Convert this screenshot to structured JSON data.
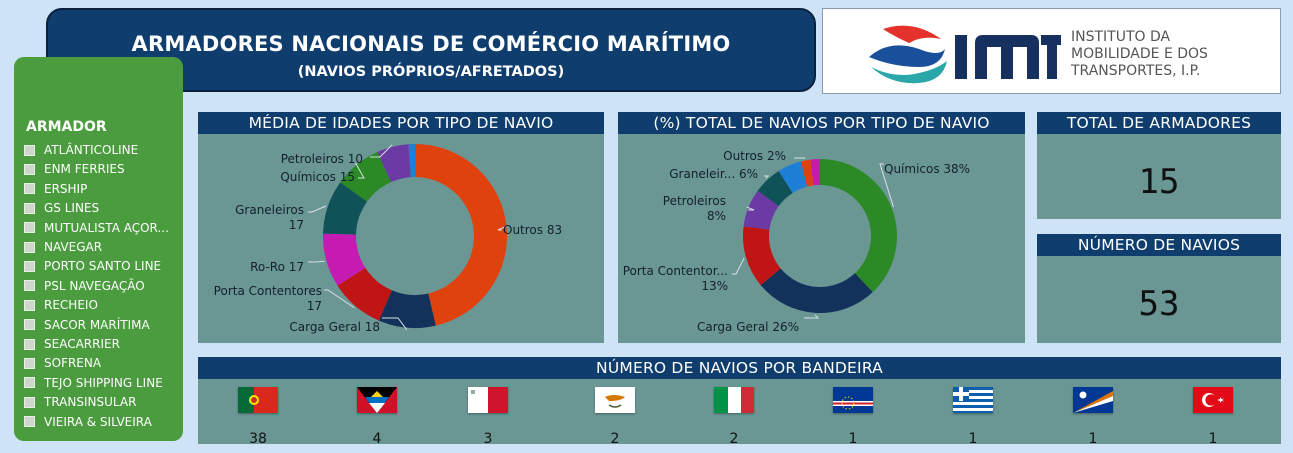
{
  "header": {
    "title": "ARMADORES NACIONAIS DE COMÉRCIO MARÍTIMO",
    "subtitle": "(NAVIOS PRÓPRIOS/AFRETADOS)"
  },
  "logo": {
    "text_lines": [
      "INSTITUTO DA",
      "MOBILIDADE E DOS",
      "TRANSPORTES, I.P."
    ],
    "colors": {
      "wave_blue": "#1a4f9c",
      "wave_red": "#e4312b",
      "wave_teal": "#2aa7a8",
      "mark_navy": "#16315f"
    }
  },
  "sidebar": {
    "title": "ARMADOR",
    "items": [
      {
        "label": "ATLÂNTICOLINE"
      },
      {
        "label": "ENM FERRIES"
      },
      {
        "label": "ERSHIP"
      },
      {
        "label": "GS LINES"
      },
      {
        "label": "MUTUALISTA AÇOR..."
      },
      {
        "label": "NAVEGAR"
      },
      {
        "label": "PORTO SANTO LINE"
      },
      {
        "label": "PSL NAVEGAÇÃO"
      },
      {
        "label": "RECHEIO"
      },
      {
        "label": "SACOR MARÍTIMA"
      },
      {
        "label": "SEACARRIER"
      },
      {
        "label": "SOFRENA"
      },
      {
        "label": "TEJO SHIPPING LINE"
      },
      {
        "label": "TRANSINSULAR"
      },
      {
        "label": "VIEIRA & SILVEIRA"
      }
    ]
  },
  "panels": {
    "ages_title": "MÉDIA DE IDADES POR TIPO DE NAVIO",
    "share_title": "(%) TOTAL DE NAVIOS POR TIPO DE NAVIO",
    "total_armadores_title": "TOTAL DE ARMADORES",
    "total_armadores_value": "15",
    "num_navios_title": "NÚMERO DE NAVIOS",
    "num_navios_value": "53",
    "flags_title": "NÚMERO DE NAVIOS POR BANDEIRA"
  },
  "chart_data": [
    {
      "type": "pie",
      "title": "MÉDIA DE IDADES POR TIPO DE NAVIO",
      "slices": [
        {
          "name": "Outros",
          "value": 83,
          "color": "#e0420e",
          "label_lines": [
            "Outros 83"
          ]
        },
        {
          "name": "Carga Geral",
          "value": 18,
          "color": "#12325c",
          "label_lines": [
            "Carga Geral 18"
          ]
        },
        {
          "name": "Porta Contentores",
          "value": 17,
          "color": "#c01515",
          "label_lines": [
            "Porta Contentores",
            "17"
          ]
        },
        {
          "name": "Ro-Ro",
          "value": 17,
          "color": "#c51bb3",
          "label_lines": [
            "Ro-Ro 17"
          ]
        },
        {
          "name": "Graneleiros",
          "value": 17,
          "color": "#0f5257",
          "label_lines": [
            "Graneleiros",
            "17"
          ]
        },
        {
          "name": "Químicos",
          "value": 15,
          "color": "#2c8a26",
          "label_lines": [
            "Químicos 15"
          ]
        },
        {
          "name": "Petroleiros",
          "value": 10,
          "color": "#6c3aa4",
          "label_lines": [
            "Petroleiros 10"
          ]
        },
        {
          "name": "",
          "value": 2,
          "color": "#1e7fd6",
          "label_lines": []
        }
      ]
    },
    {
      "type": "pie",
      "title": "(%) TOTAL DE NAVIOS POR TIPO DE NAVIO",
      "slices": [
        {
          "name": "Químicos",
          "value": 38,
          "color": "#2c8a26",
          "label_lines": [
            "Químicos 38%"
          ]
        },
        {
          "name": "Carga Geral",
          "value": 26,
          "color": "#12325c",
          "label_lines": [
            "Carga Geral 26%"
          ]
        },
        {
          "name": "Porta Contentor...",
          "value": 13,
          "color": "#c01515",
          "label_lines": [
            "Porta Contentor...",
            "13%"
          ]
        },
        {
          "name": "Petroleiros",
          "value": 8,
          "color": "#6c3aa4",
          "label_lines": [
            "Petroleiros",
            "8%"
          ]
        },
        {
          "name": "Graneleir...",
          "value": 6,
          "color": "#0f5257",
          "label_lines": [
            "Graneleir... 6%"
          ]
        },
        {
          "name": "",
          "value": 5,
          "color": "#1e7fd6",
          "label_lines": []
        },
        {
          "name": "Outros",
          "value": 2,
          "color": "#e0420e",
          "label_lines": [
            "Outros 2%"
          ]
        },
        {
          "name": "",
          "value": 2,
          "color": "#c51bb3",
          "label_lines": []
        }
      ]
    },
    {
      "type": "table",
      "title": "NÚMERO DE NAVIOS POR BANDEIRA",
      "columns": [
        "flag",
        "count"
      ],
      "rows": [
        {
          "flag": "portugal-flag-icon",
          "count": "38"
        },
        {
          "flag": "antigua-barbuda-flag-icon",
          "count": "4"
        },
        {
          "flag": "malta-flag-icon",
          "count": "3"
        },
        {
          "flag": "cyprus-flag-icon",
          "count": "2"
        },
        {
          "flag": "italy-flag-icon",
          "count": "2"
        },
        {
          "flag": "cape-verde-flag-icon",
          "count": "1"
        },
        {
          "flag": "greece-flag-icon",
          "count": "1"
        },
        {
          "flag": "marshall-islands-flag-icon",
          "count": "1"
        },
        {
          "flag": "turkey-flag-icon",
          "count": "1"
        }
      ]
    }
  ]
}
